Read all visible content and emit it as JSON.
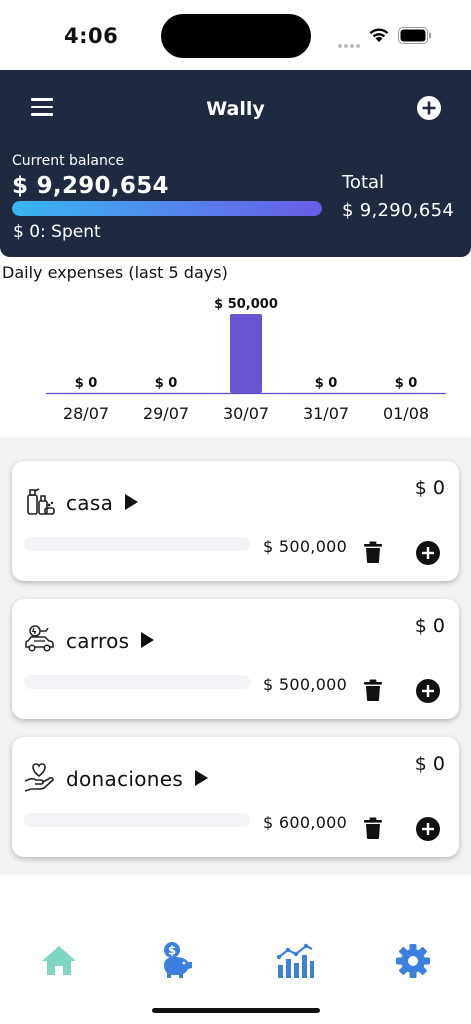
{
  "status_bar": {
    "time": "4:06"
  },
  "header": {
    "title": "Wally",
    "balance_label": "Current balance",
    "balance_value": "$ 9,290,654",
    "balance_fill": 1.0,
    "spent_text": "$ 0: Spent",
    "total_label": "Total",
    "total_value": "$ 9,290,654"
  },
  "chart_data": {
    "type": "bar",
    "title": "Daily expenses (last 5 days)",
    "categories": [
      "28/07",
      "29/07",
      "30/07",
      "31/07",
      "01/08"
    ],
    "values": [
      0,
      0,
      50000,
      0,
      0
    ],
    "value_labels": [
      "$ 0",
      "$ 0",
      "$ 50,000",
      "$ 0",
      "$ 0"
    ],
    "bar_color": "#6a54d2",
    "xlabel": "",
    "ylabel": "",
    "ylim": [
      0,
      50000
    ],
    "grid": false,
    "legend": "none"
  },
  "categories": [
    {
      "name": "casa",
      "icon": "house-cleaning-icon",
      "spent": "$ 0",
      "budget": "$ 500,000",
      "fill": 0
    },
    {
      "name": "carros",
      "icon": "electric-car-icon",
      "spent": "$ 0",
      "budget": "$ 500,000",
      "fill": 0
    },
    {
      "name": "donaciones",
      "icon": "heart-hand-icon",
      "spent": "$ 0",
      "budget": "$ 600,000",
      "fill": 0
    }
  ],
  "nav": {
    "items": [
      {
        "icon": "home-icon",
        "color": "#7fd6c2"
      },
      {
        "icon": "piggy-bank-icon",
        "color": "#3b7fe0"
      },
      {
        "icon": "chart-icon",
        "color": "#3b7fe0"
      },
      {
        "icon": "gear-icon",
        "color": "#3b7fe0"
      }
    ]
  },
  "colors": {
    "header_bg": "#1f2a40",
    "gradient_start": "#38b6f0",
    "gradient_end": "#6a5ce8"
  }
}
